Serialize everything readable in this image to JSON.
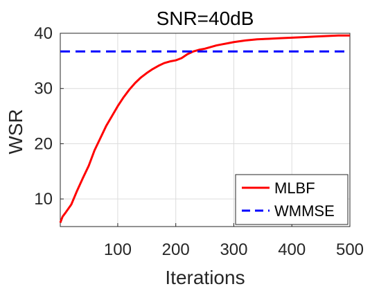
{
  "chart_data": {
    "type": "line",
    "title": "SNR=40dB",
    "xlabel": "Iterations",
    "ylabel": "WSR",
    "xlim": [
      1,
      500
    ],
    "ylim": [
      5,
      40
    ],
    "xticks": [
      100,
      200,
      300,
      400,
      500
    ],
    "yticks": [
      10,
      20,
      30,
      40
    ],
    "grid": true,
    "legend_position": "bottom-right",
    "series": [
      {
        "name": "MLBF",
        "color": "#ff0000",
        "style": "solid",
        "x": [
          1,
          5,
          10,
          20,
          30,
          40,
          50,
          60,
          70,
          80,
          90,
          100,
          110,
          120,
          130,
          140,
          150,
          160,
          170,
          180,
          190,
          200,
          210,
          220,
          230,
          240,
          250,
          260,
          270,
          280,
          290,
          300,
          320,
          340,
          360,
          380,
          400,
          420,
          440,
          460,
          480,
          500
        ],
        "y": [
          5.7,
          6.8,
          7.5,
          9.0,
          11.5,
          13.8,
          16.0,
          18.8,
          21.0,
          23.2,
          25.0,
          26.8,
          28.4,
          29.8,
          31.0,
          32.0,
          32.8,
          33.5,
          34.1,
          34.6,
          34.9,
          35.1,
          35.5,
          36.2,
          36.7,
          37.0,
          37.2,
          37.5,
          37.8,
          38.0,
          38.2,
          38.4,
          38.7,
          38.9,
          39.0,
          39.1,
          39.2,
          39.3,
          39.4,
          39.5,
          39.6,
          39.6
        ]
      },
      {
        "name": "WMMSE",
        "color": "#0000ff",
        "style": "dashed",
        "x": [
          1,
          500
        ],
        "y": [
          36.7,
          36.7
        ]
      }
    ]
  }
}
